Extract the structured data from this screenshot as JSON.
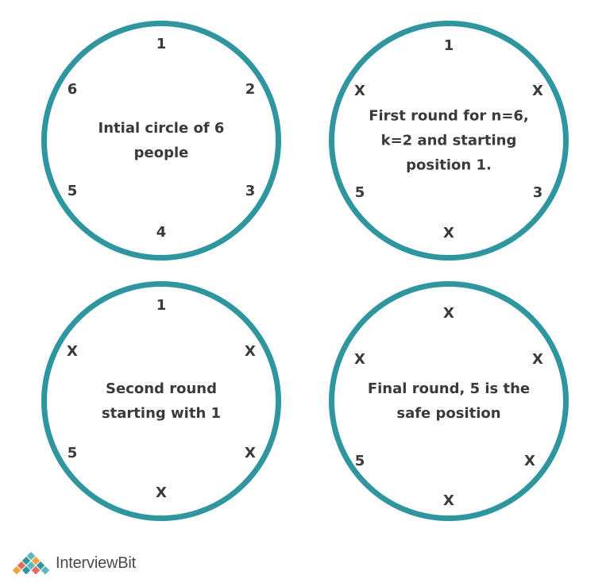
{
  "panels": [
    {
      "caption": "Intial circle of 6\npeople",
      "positions": [
        "1",
        "2",
        "3",
        "4",
        "5",
        "6"
      ]
    },
    {
      "caption": "First round for n=6,\nk=2 and starting\nposition 1.",
      "positions": [
        "1",
        "X",
        "3",
        "X",
        "5",
        "X"
      ]
    },
    {
      "caption": "Second round\nstarting with 1",
      "positions": [
        "1",
        "X",
        "X",
        "X",
        "5",
        "X"
      ]
    },
    {
      "caption": "Final round, 5 is the\nsafe position",
      "positions": [
        "X",
        "X",
        "X",
        "X",
        "5",
        "X"
      ]
    }
  ],
  "logo": {
    "text": "InterviewBit"
  },
  "colors": {
    "ring": "#2f96a0",
    "text": "#3a3a3a"
  }
}
